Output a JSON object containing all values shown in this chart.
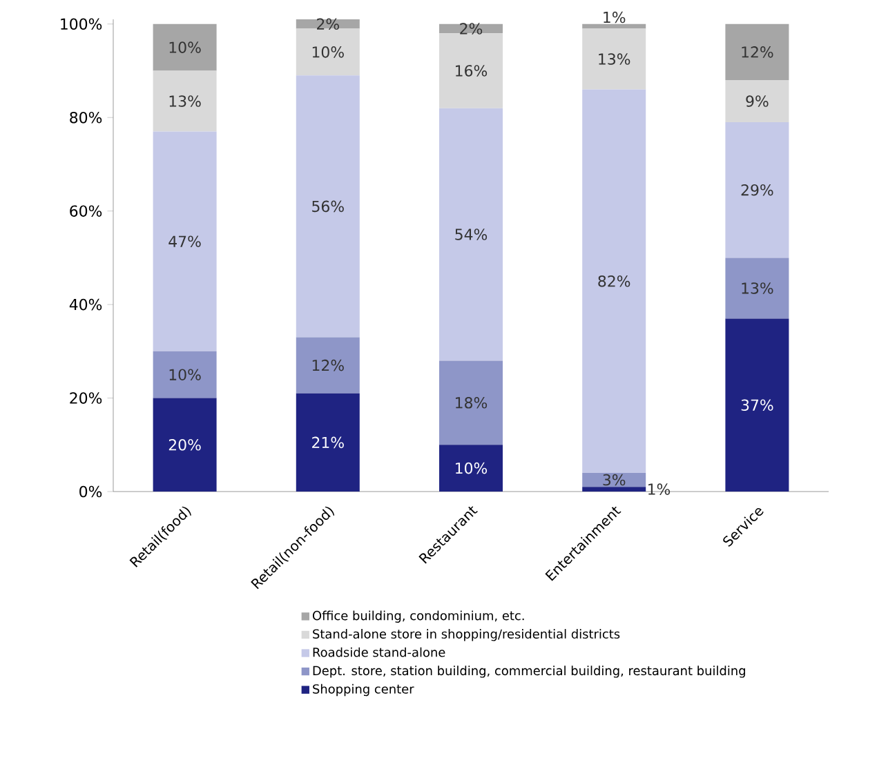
{
  "chart_data": {
    "type": "bar",
    "stacked": true,
    "categories": [
      "Retail(food)",
      "Retail(non-food)",
      "Restaurant",
      "Entertainment",
      "Service"
    ],
    "ylim": [
      0,
      101
    ],
    "yticks": [
      {
        "value": 0,
        "label": "0%"
      },
      {
        "value": 20,
        "label": "20%"
      },
      {
        "value": 40,
        "label": "40%"
      },
      {
        "value": 60,
        "label": "60%"
      },
      {
        "value": 80,
        "label": "80%"
      },
      {
        "value": 100,
        "label": "100%"
      }
    ],
    "legend": "bottom",
    "series": [
      {
        "name": "Shopping center",
        "color": "#1f2382",
        "values": [
          20,
          21,
          10,
          1,
          37
        ],
        "value_labels": [
          "20%",
          "21%",
          "10%",
          "1%",
          "37%"
        ]
      },
      {
        "name": "Dept. store, station building, commercial building, restaurant building",
        "color": "#8e96c8",
        "values": [
          10,
          12,
          18,
          3,
          13
        ],
        "value_labels": [
          "10%",
          "12%",
          "18%",
          "3%",
          "13%"
        ]
      },
      {
        "name": "Roadside stand-alone",
        "color": "#c5c9e8",
        "values": [
          47,
          56,
          54,
          82,
          29
        ],
        "value_labels": [
          "47%",
          "56%",
          "54%",
          "82%",
          "29%"
        ]
      },
      {
        "name": "Stand-alone store in shopping/residential districts",
        "color": "#d9d9d9",
        "values": [
          13,
          10,
          16,
          13,
          9
        ],
        "value_labels": [
          "13%",
          "10%",
          "16%",
          "13%",
          "9%"
        ]
      },
      {
        "name": "Office building, condominium, etc.",
        "color": "#a6a6a6",
        "values": [
          10,
          2,
          2,
          1,
          12
        ],
        "value_labels": [
          "10%",
          "2%",
          "2%",
          "1%",
          "12%"
        ]
      }
    ]
  }
}
